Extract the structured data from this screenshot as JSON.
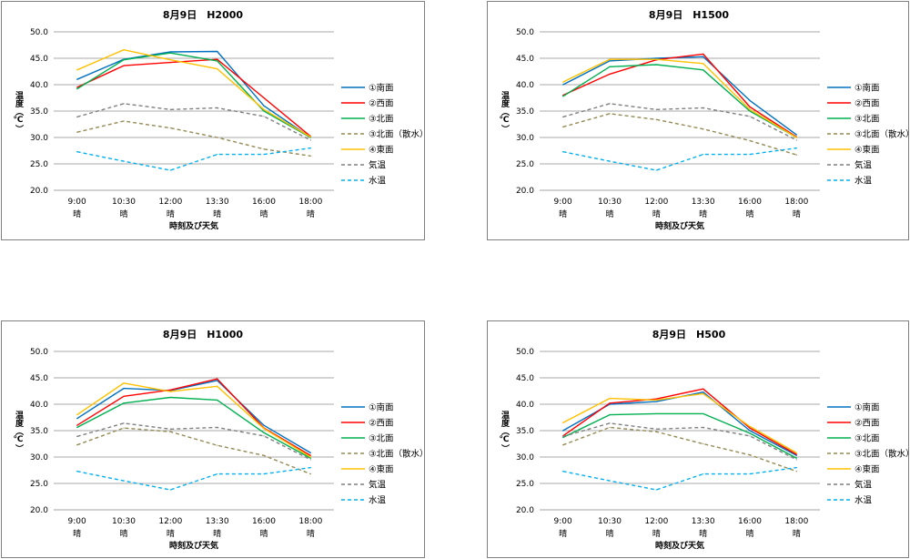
{
  "chart_data": [
    {
      "type": "line",
      "title": "8月9日　H2000",
      "xlabel": "時刻及び天気",
      "ylabel": "温度（℃）",
      "ylim": [
        20,
        50
      ],
      "yticks": [
        "20.0",
        "25.0",
        "30.0",
        "35.0",
        "40.0",
        "45.0",
        "50.0"
      ],
      "categories": [
        "9:00",
        "10:30",
        "12:00",
        "13:30",
        "16:00",
        "18:00"
      ],
      "weather": [
        "晴",
        "晴",
        "晴",
        "晴",
        "晴",
        "晴"
      ],
      "series": [
        {
          "name": "①南面",
          "color": "#0070c0",
          "dash": false,
          "values": [
            41.0,
            44.8,
            46.2,
            46.3,
            36.0,
            30.0
          ]
        },
        {
          "name": "②西面",
          "color": "#ff0000",
          "dash": false,
          "values": [
            39.5,
            43.6,
            44.2,
            44.8,
            37.5,
            30.2
          ]
        },
        {
          "name": "③北面",
          "color": "#00b050",
          "dash": false,
          "values": [
            39.2,
            44.7,
            46.0,
            44.5,
            35.0,
            30.0
          ]
        },
        {
          "name": "③北面（散水）",
          "color": "#948a54",
          "dash": true,
          "values": [
            31.0,
            33.1,
            31.8,
            30.0,
            27.8,
            26.5
          ]
        },
        {
          "name": "④東面",
          "color": "#ffc000",
          "dash": false,
          "values": [
            42.8,
            46.6,
            44.7,
            43.0,
            35.3,
            30.1
          ]
        },
        {
          "name": "気温",
          "color": "#7f7f7f",
          "dash": true,
          "values": [
            33.9,
            36.4,
            35.3,
            35.6,
            34.0,
            29.5
          ]
        },
        {
          "name": "水温",
          "color": "#00b0f0",
          "dash": true,
          "values": [
            27.3,
            25.5,
            23.8,
            26.8,
            26.8,
            28.0
          ]
        }
      ]
    },
    {
      "type": "line",
      "title": "8月9日　H1500",
      "xlabel": "時刻及び天気",
      "ylabel": "温度（℃）",
      "ylim": [
        20,
        50
      ],
      "yticks": [
        "20.0",
        "25.0",
        "30.0",
        "35.0",
        "40.0",
        "45.0",
        "50.0"
      ],
      "categories": [
        "9:00",
        "10:30",
        "12:00",
        "13:30",
        "16:00",
        "18:00"
      ],
      "weather": [
        "晴",
        "晴",
        "晴",
        "晴",
        "晴",
        "晴"
      ],
      "series": [
        {
          "name": "①南面",
          "color": "#0070c0",
          "dash": false,
          "values": [
            40.0,
            44.5,
            45.0,
            45.3,
            37.0,
            30.5
          ]
        },
        {
          "name": "②西面",
          "color": "#ff0000",
          "dash": false,
          "values": [
            38.0,
            42.0,
            44.7,
            45.8,
            35.8,
            30.1
          ]
        },
        {
          "name": "③北面",
          "color": "#00b050",
          "dash": false,
          "values": [
            37.8,
            43.4,
            43.8,
            42.8,
            35.0,
            30.0
          ]
        },
        {
          "name": "③北面（散水）",
          "color": "#948a54",
          "dash": true,
          "values": [
            32.0,
            34.5,
            33.4,
            31.6,
            29.4,
            26.7
          ]
        },
        {
          "name": "④東面",
          "color": "#ffc000",
          "dash": false,
          "values": [
            40.5,
            44.8,
            44.8,
            44.0,
            35.3,
            30.0
          ]
        },
        {
          "name": "気温",
          "color": "#7f7f7f",
          "dash": true,
          "values": [
            33.9,
            36.4,
            35.3,
            35.6,
            34.0,
            29.5
          ]
        },
        {
          "name": "水温",
          "color": "#00b0f0",
          "dash": true,
          "values": [
            27.3,
            25.5,
            23.8,
            26.8,
            26.8,
            28.0
          ]
        }
      ]
    },
    {
      "type": "line",
      "title": "8月9日　H1000",
      "xlabel": "時刻及び天気",
      "ylabel": "温度（℃）",
      "ylim": [
        20,
        50
      ],
      "yticks": [
        "20.0",
        "25.0",
        "30.0",
        "35.0",
        "40.0",
        "45.0",
        "50.0"
      ],
      "categories": [
        "9:00",
        "10:30",
        "12:00",
        "13:30",
        "16:00",
        "18:00"
      ],
      "weather": [
        "晴",
        "晴",
        "晴",
        "晴",
        "晴",
        "晴"
      ],
      "series": [
        {
          "name": "①南面",
          "color": "#0070c0",
          "dash": false,
          "values": [
            37.3,
            43.0,
            42.6,
            44.5,
            36.0,
            30.8
          ]
        },
        {
          "name": "②西面",
          "color": "#ff0000",
          "dash": false,
          "values": [
            36.0,
            41.5,
            42.7,
            44.8,
            35.5,
            30.3
          ]
        },
        {
          "name": "③北面",
          "color": "#00b050",
          "dash": false,
          "values": [
            35.6,
            40.2,
            41.3,
            40.8,
            34.6,
            29.8
          ]
        },
        {
          "name": "③北面（散水）",
          "color": "#948a54",
          "dash": true,
          "values": [
            32.3,
            35.5,
            34.8,
            32.2,
            30.3,
            26.8
          ]
        },
        {
          "name": "④東面",
          "color": "#ffc000",
          "dash": false,
          "values": [
            38.0,
            44.0,
            42.4,
            43.4,
            35.4,
            30.0
          ]
        },
        {
          "name": "気温",
          "color": "#7f7f7f",
          "dash": true,
          "values": [
            33.9,
            36.4,
            35.3,
            35.6,
            34.0,
            29.5
          ]
        },
        {
          "name": "水温",
          "color": "#00b0f0",
          "dash": true,
          "values": [
            27.3,
            25.5,
            23.8,
            26.8,
            26.8,
            28.0
          ]
        }
      ]
    },
    {
      "type": "line",
      "title": "8月9日　H500",
      "xlabel": "時刻及び天気",
      "ylabel": "温度（℃）",
      "ylim": [
        20,
        50
      ],
      "yticks": [
        "20.0",
        "25.0",
        "30.0",
        "35.0",
        "40.0",
        "45.0",
        "50.0"
      ],
      "categories": [
        "9:00",
        "10:30",
        "12:00",
        "13:30",
        "16:00",
        "18:00"
      ],
      "weather": [
        "晴",
        "晴",
        "晴",
        "晴",
        "晴",
        "晴"
      ],
      "series": [
        {
          "name": "①南面",
          "color": "#0070c0",
          "dash": false,
          "values": [
            35.0,
            40.0,
            40.5,
            42.3,
            35.0,
            30.3
          ]
        },
        {
          "name": "②西面",
          "color": "#ff0000",
          "dash": false,
          "values": [
            34.0,
            40.2,
            41.0,
            42.9,
            35.5,
            30.5
          ]
        },
        {
          "name": "③北面",
          "color": "#00b050",
          "dash": false,
          "values": [
            33.7,
            38.0,
            38.2,
            38.2,
            34.5,
            29.8
          ]
        },
        {
          "name": "③北面（散水）",
          "color": "#948a54",
          "dash": true,
          "values": [
            32.3,
            35.6,
            34.8,
            32.5,
            30.4,
            27.3
          ]
        },
        {
          "name": "④東面",
          "color": "#ffc000",
          "dash": false,
          "values": [
            36.5,
            41.1,
            40.8,
            42.0,
            35.8,
            30.8
          ]
        },
        {
          "name": "気温",
          "color": "#7f7f7f",
          "dash": true,
          "values": [
            33.9,
            36.4,
            35.3,
            35.6,
            34.0,
            29.5
          ]
        },
        {
          "name": "水温",
          "color": "#00b0f0",
          "dash": true,
          "values": [
            27.3,
            25.5,
            23.8,
            26.8,
            26.8,
            28.0
          ]
        }
      ]
    }
  ]
}
